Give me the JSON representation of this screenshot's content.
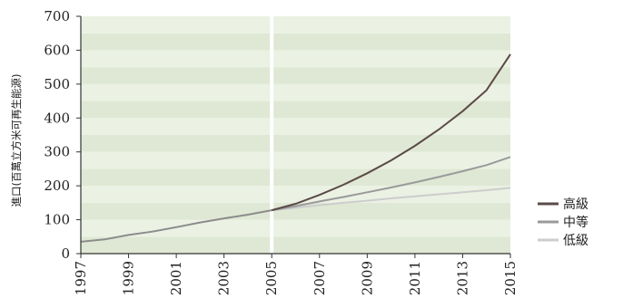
{
  "chart_data": {
    "type": "line",
    "title": "",
    "xlabel": "",
    "ylabel": "進口(百萬立方米可再生能源)",
    "xlim": [
      1997,
      2015
    ],
    "ylim": [
      0,
      700
    ],
    "x_ticks": [
      "1997",
      "1999",
      "2001",
      "2003",
      "2005",
      "2007",
      "2009",
      "2011",
      "2013",
      "2015"
    ],
    "y_ticks": [
      "0",
      "100",
      "200",
      "300",
      "400",
      "500",
      "600",
      "700"
    ],
    "grid": false,
    "legend_position": "bottom-right",
    "background_bands": [
      "#dfe8d4",
      "#ebf1e3"
    ],
    "divider_year": 2005,
    "history": {
      "color": "#8c8c8c",
      "x": [
        1997,
        1998,
        1999,
        2000,
        2001,
        2002,
        2003,
        2004,
        2005
      ],
      "y": [
        35,
        42,
        55,
        65,
        78,
        92,
        104,
        115,
        128
      ]
    },
    "series": [
      {
        "name": "高級",
        "color": "#5b4a48",
        "x": [
          2005,
          2006,
          2007,
          2008,
          2009,
          2010,
          2011,
          2012,
          2013,
          2014,
          2015
        ],
        "y": [
          128,
          147,
          173,
          203,
          237,
          275,
          318,
          366,
          420,
          482,
          588
        ]
      },
      {
        "name": "中等",
        "color": "#9a9a9a",
        "x": [
          2005,
          2006,
          2007,
          2008,
          2009,
          2010,
          2011,
          2012,
          2013,
          2014,
          2015
        ],
        "y": [
          128,
          140,
          154,
          167,
          181,
          195,
          210,
          226,
          243,
          261,
          285
        ]
      },
      {
        "name": "低級",
        "color": "#cdcdcd",
        "x": [
          2005,
          2006,
          2007,
          2008,
          2009,
          2010,
          2011,
          2012,
          2013,
          2014,
          2015
        ],
        "y": [
          128,
          135,
          143,
          150,
          156,
          163,
          169,
          175,
          181,
          187,
          194
        ]
      }
    ]
  }
}
